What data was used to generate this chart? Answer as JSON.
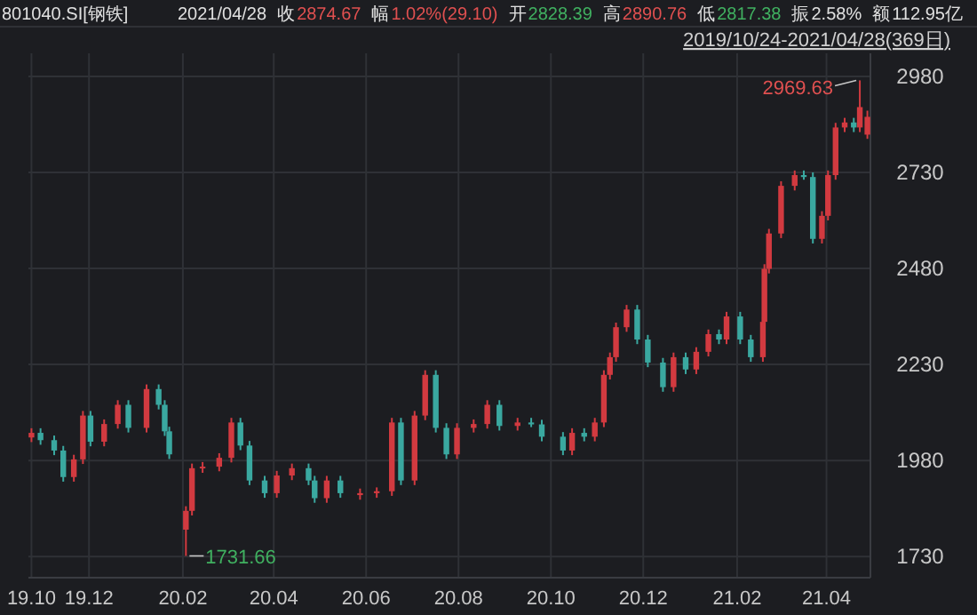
{
  "chart_data": {
    "type": "candlestick",
    "title": "801040.SI[钢铁]",
    "subtitle": "2019/10/24-2021/04/28(369日)",
    "annotations": [
      "2021/04/28",
      "收",
      "2874.67",
      "幅",
      "1.02%(29.10)",
      "开",
      "2828.39",
      "高",
      "2890.76",
      "低",
      "2817.38",
      "振",
      "2.58%",
      "额",
      "112.95亿",
      {
        "text": "2969.63",
        "x": "2021-04-23",
        "y": 2969.63
      },
      {
        "text": "1731.66",
        "x": "2020-02-03",
        "y": 1731.66
      }
    ],
    "x": [
      "2019-10-24",
      "2019-10-30",
      "2019-11-08",
      "2019-11-14",
      "2019-11-21",
      "2019-11-27",
      "2019-12-02",
      "2019-12-11",
      "2019-12-20",
      "2019-12-27",
      "2020-01-08",
      "2020-01-16",
      "2020-01-20",
      "2020-01-23",
      "2020-02-03",
      "2020-02-07",
      "2020-02-14",
      "2020-02-25",
      "2020-03-04",
      "2020-03-10",
      "2020-03-16",
      "2020-03-26",
      "2020-04-03",
      "2020-04-13",
      "2020-04-24",
      "2020-04-28",
      "2020-05-06",
      "2020-05-15",
      "2020-05-28",
      "2020-06-08",
      "2020-06-18",
      "2020-06-24",
      "2020-07-03",
      "2020-07-10",
      "2020-07-17",
      "2020-07-24",
      "2020-07-31",
      "2020-08-11",
      "2020-08-20",
      "2020-08-28",
      "2020-09-09",
      "2020-09-18",
      "2020-09-25",
      "2020-10-09",
      "2020-10-15",
      "2020-10-23",
      "2020-10-30",
      "2020-11-05",
      "2020-11-09",
      "2020-11-13",
      "2020-11-20",
      "2020-11-27",
      "2020-12-04",
      "2020-12-14",
      "2020-12-21",
      "2020-12-29",
      "2021-01-05",
      "2021-01-13",
      "2021-01-20",
      "2021-01-25",
      "2021-02-03",
      "2021-02-10",
      "2021-02-18",
      "2021-02-19",
      "2021-02-22",
      "2021-03-02",
      "2021-03-11",
      "2021-03-17",
      "2021-03-23",
      "2021-03-29",
      "2021-04-02",
      "2021-04-07",
      "2021-04-13",
      "2021-04-19",
      "2021-04-23",
      "2021-04-28"
    ],
    "ohlc": [
      [
        2040,
        2064,
        2028,
        2052
      ],
      [
        2052,
        2064,
        2021,
        2033
      ],
      [
        2033,
        2045,
        1994,
        2006
      ],
      [
        2006,
        2018,
        1925,
        1937
      ],
      [
        1937,
        1995,
        1925,
        1983
      ],
      [
        1983,
        2109,
        1971,
        2097
      ],
      [
        2097,
        2109,
        2017,
        2029
      ],
      [
        2029,
        2087,
        2017,
        2075
      ],
      [
        2075,
        2137,
        2063,
        2125
      ],
      [
        2125,
        2137,
        2053,
        2065
      ],
      [
        2065,
        2178,
        2053,
        2166
      ],
      [
        2166,
        2178,
        2113,
        2125
      ],
      [
        2125,
        2137,
        2044,
        2056
      ],
      [
        2056,
        2068,
        1984,
        1996
      ],
      [
        1800,
        1861,
        1731.66,
        1849
      ],
      [
        1849,
        1972,
        1837,
        1960
      ],
      [
        1960,
        1976,
        1948,
        1964
      ],
      [
        1964,
        1999,
        1952,
        1987
      ],
      [
        1987,
        2091,
        1975,
        2079
      ],
      [
        2079,
        2091,
        2007,
        2019
      ],
      [
        2019,
        2031,
        1916,
        1928
      ],
      [
        1928,
        1940,
        1883,
        1895
      ],
      [
        1895,
        1953,
        1883,
        1941
      ],
      [
        1941,
        1972,
        1929,
        1960
      ],
      [
        1960,
        1972,
        1916,
        1928
      ],
      [
        1928,
        1940,
        1870,
        1882
      ],
      [
        1882,
        1940,
        1870,
        1928
      ],
      [
        1928,
        1940,
        1883,
        1895
      ],
      [
        1890,
        1907,
        1878,
        1895
      ],
      [
        1895,
        1910,
        1883,
        1900
      ],
      [
        1900,
        2091,
        1888,
        2079
      ],
      [
        2079,
        2091,
        1916,
        1928
      ],
      [
        1928,
        2109,
        1916,
        2097
      ],
      [
        2097,
        2215,
        2085,
        2203
      ],
      [
        2203,
        2215,
        2053,
        2065
      ],
      [
        2065,
        2077,
        1984,
        1996
      ],
      [
        1996,
        2077,
        1984,
        2065
      ],
      [
        2065,
        2087,
        2053,
        2075
      ],
      [
        2075,
        2137,
        2063,
        2125
      ],
      [
        2125,
        2137,
        2058,
        2070
      ],
      [
        2070,
        2091,
        2058,
        2079
      ],
      [
        2079,
        2091,
        2067,
        2074
      ],
      [
        2074,
        2086,
        2030,
        2042
      ],
      [
        2042,
        2054,
        1994,
        2006
      ],
      [
        2006,
        2064,
        1994,
        2052
      ],
      [
        2052,
        2064,
        2030,
        2042
      ],
      [
        2042,
        2091,
        2030,
        2079
      ],
      [
        2079,
        2215,
        2067,
        2203
      ],
      [
        2203,
        2261,
        2191,
        2249
      ],
      [
        2249,
        2339,
        2237,
        2327
      ],
      [
        2327,
        2385,
        2315,
        2373
      ],
      [
        2373,
        2385,
        2283,
        2295
      ],
      [
        2295,
        2307,
        2223,
        2235
      ],
      [
        2235,
        2247,
        2159,
        2171
      ],
      [
        2171,
        2261,
        2159,
        2249
      ],
      [
        2249,
        2261,
        2205,
        2217
      ],
      [
        2217,
        2275,
        2205,
        2263
      ],
      [
        2263,
        2321,
        2251,
        2309
      ],
      [
        2309,
        2321,
        2283,
        2295
      ],
      [
        2295,
        2367,
        2283,
        2355
      ],
      [
        2355,
        2367,
        2283,
        2295
      ],
      [
        2295,
        2307,
        2237,
        2249
      ],
      [
        2249,
        2353,
        2237,
        2341
      ],
      [
        2341,
        2491,
        2329,
        2479
      ],
      [
        2479,
        2583,
        2467,
        2571
      ],
      [
        2571,
        2707,
        2559,
        2695
      ],
      [
        2695,
        2735,
        2683,
        2723
      ],
      [
        2723,
        2735,
        2711,
        2718
      ],
      [
        2718,
        2730,
        2545,
        2557
      ],
      [
        2557,
        2629,
        2545,
        2617
      ],
      [
        2617,
        2735,
        2605,
        2723
      ],
      [
        2723,
        2859,
        2711,
        2847
      ],
      [
        2847,
        2872,
        2835,
        2860
      ],
      [
        2860,
        2872,
        2835,
        2847
      ],
      [
        2847,
        2969.63,
        2835,
        2900
      ],
      [
        2828.39,
        2890.76,
        2817.38,
        2874.67
      ]
    ],
    "xlim": [
      "2019-10-22",
      "2021-04-30"
    ],
    "ylim": [
      1675,
      3040
    ],
    "xticks": [
      {
        "value": "2019-10-24",
        "label": "19.10"
      },
      {
        "value": "2019-12",
        "label": "19.12"
      },
      {
        "value": "2020-02",
        "label": "20.02"
      },
      {
        "value": "2020-04",
        "label": "20.04"
      },
      {
        "value": "2020-06",
        "label": "20.06"
      },
      {
        "value": "2020-08",
        "label": "20.08"
      },
      {
        "value": "2020-10",
        "label": "20.10"
      },
      {
        "value": "2020-12",
        "label": "20.12"
      },
      {
        "value": "2021-02",
        "label": "21.02"
      },
      {
        "value": "2021-04",
        "label": "21.04"
      }
    ],
    "yticks": [
      1730,
      1980,
      2230,
      2480,
      2730,
      2980
    ],
    "grid": true
  }
}
